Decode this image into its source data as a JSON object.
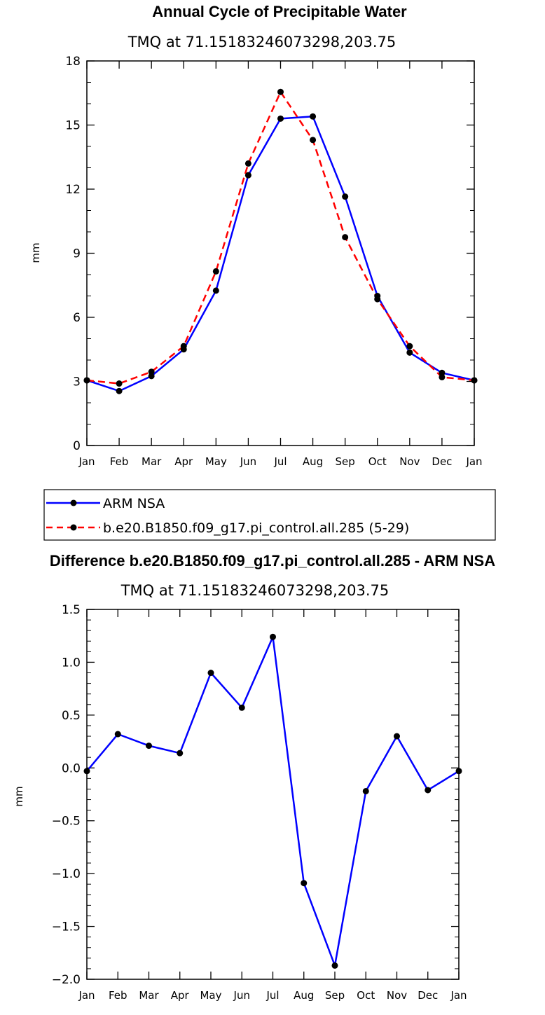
{
  "chart_data": [
    {
      "type": "line",
      "title": "Annual Cycle of Precipitable Water",
      "subtitle": "TMQ at 71.15183246073298,203.75",
      "ylabel": "mm",
      "xlabel": "",
      "ylim": [
        0,
        18
      ],
      "yticks": [
        "0",
        "3",
        "6",
        "9",
        "12",
        "15",
        "18"
      ],
      "categories": [
        "Jan",
        "Feb",
        "Mar",
        "Apr",
        "May",
        "Jun",
        "Jul",
        "Aug",
        "Sep",
        "Oct",
        "Nov",
        "Dec",
        "Jan"
      ],
      "series": [
        {
          "name": "ARM NSA",
          "color": "#0000ff",
          "dash": "solid",
          "values": [
            3.05,
            2.55,
            3.25,
            4.5,
            7.25,
            12.65,
            15.3,
            15.4,
            11.65,
            7.0,
            4.35,
            3.4,
            3.05
          ]
        },
        {
          "name": "b.e20.B1850.f09_g17.pi_control.all.285 (5-29)",
          "color": "#ff0000",
          "dash": "dashed",
          "values": [
            3.05,
            2.9,
            3.45,
            4.65,
            8.15,
            13.2,
            16.55,
            14.3,
            9.75,
            6.85,
            4.65,
            3.2,
            3.05
          ]
        }
      ],
      "legend": "below"
    },
    {
      "type": "line",
      "title": "Difference b.e20.B1850.f09_g17.pi_control.all.285 - ARM NSA",
      "subtitle": "TMQ at 71.15183246073298,203.75",
      "ylabel": "mm",
      "xlabel": "",
      "ylim": [
        -2.0,
        1.5
      ],
      "yticks": [
        "-2.0",
        "-1.5",
        "-1.0",
        "-0.5",
        "0.0",
        "0.5",
        "1.0",
        "1.5"
      ],
      "categories": [
        "Jan",
        "Feb",
        "Mar",
        "Apr",
        "May",
        "Jun",
        "Jul",
        "Aug",
        "Sep",
        "Oct",
        "Nov",
        "Dec",
        "Jan"
      ],
      "series": [
        {
          "color": "#0000ff",
          "dash": "solid",
          "values": [
            -0.03,
            0.32,
            0.21,
            0.14,
            0.9,
            0.57,
            1.24,
            -1.09,
            -1.87,
            -0.22,
            0.3,
            -0.21,
            -0.03
          ]
        }
      ]
    }
  ]
}
